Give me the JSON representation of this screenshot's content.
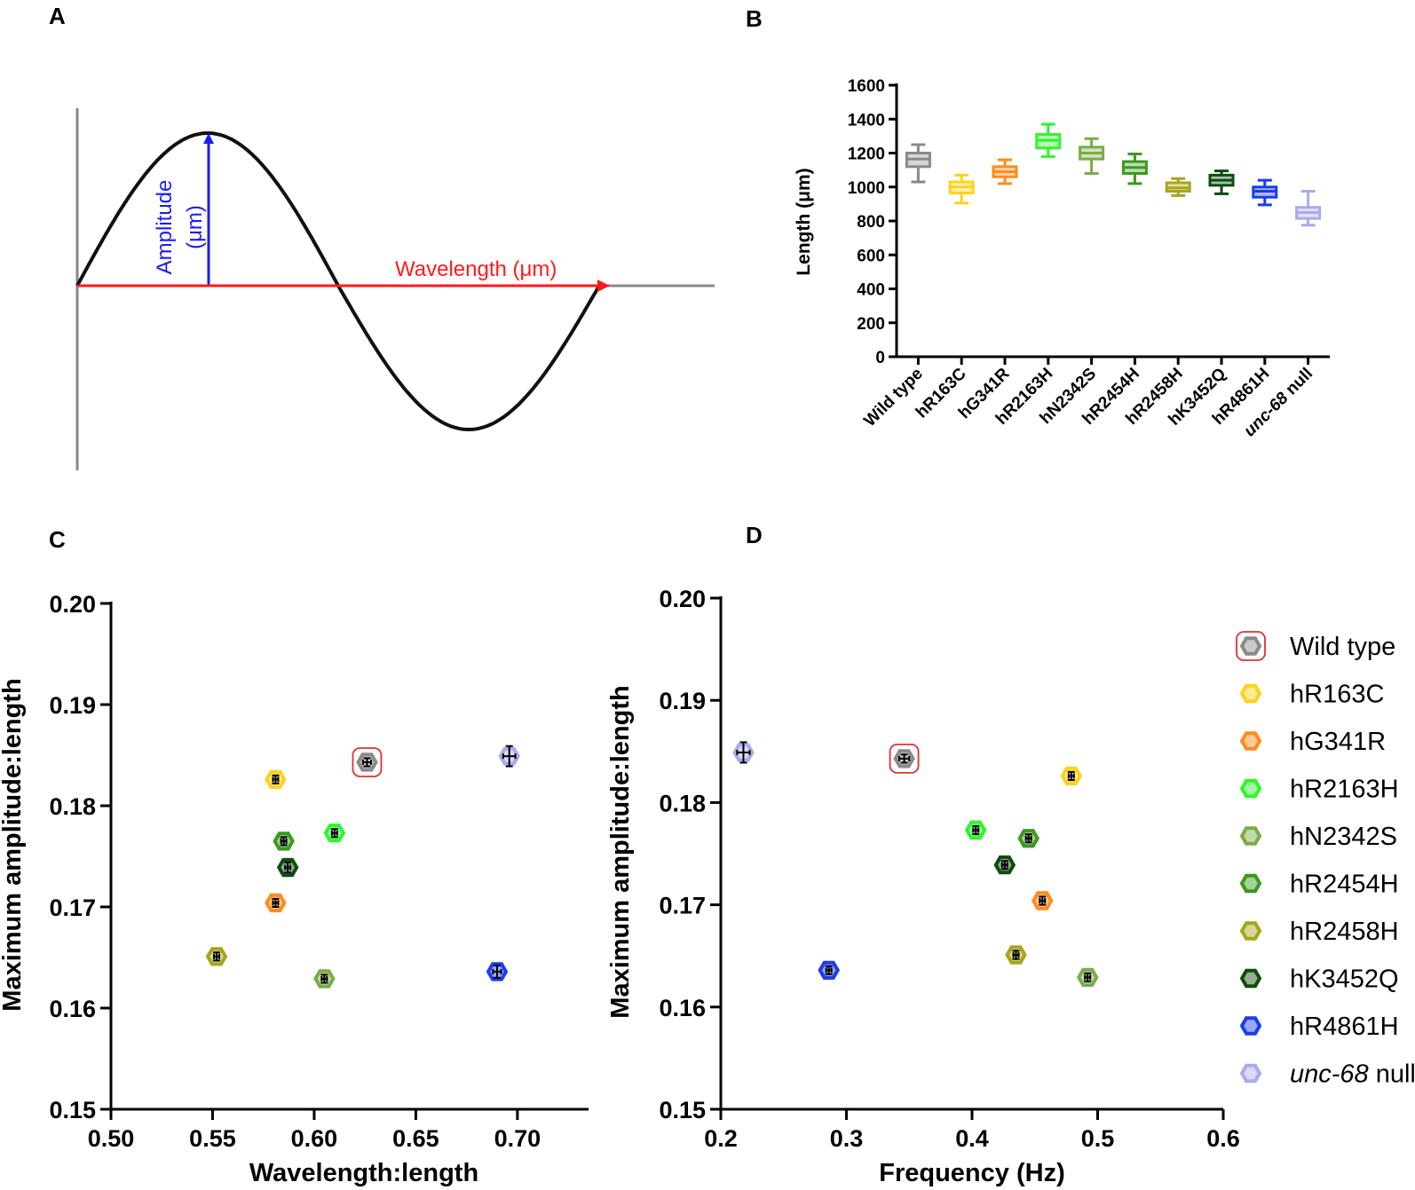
{
  "panels": {
    "a": "A",
    "b": "B",
    "c": "C",
    "d": "D"
  },
  "panel_a": {
    "amplitude_label_line1": "Amplitude",
    "amplitude_label_line2": "(μm)",
    "wavelength_label": "Wavelength (μm)",
    "colors": {
      "curve": "#111111",
      "axis": "#888888",
      "amplitude": "#1a1aff",
      "wavelength": "#ff1a1a"
    }
  },
  "legend": {
    "items": [
      {
        "label": "Wild type",
        "color": "#8a8a8a",
        "highlight": true
      },
      {
        "label": "hR163C",
        "color": "#ffd21a"
      },
      {
        "label": "hG341R",
        "color": "#ff8c1a"
      },
      {
        "label": "hR2163H",
        "color": "#2ef52e"
      },
      {
        "label": "hN2342S",
        "color": "#7aad45"
      },
      {
        "label": "hR2454H",
        "color": "#3a9a1c"
      },
      {
        "label": "hR2458H",
        "color": "#a8a51c"
      },
      {
        "label": "hK3452Q",
        "color": "#0d4d0d"
      },
      {
        "label": "hR4861H",
        "color": "#1a3cf0"
      },
      {
        "label_italic": "unc-68",
        "label_rest": " null",
        "color": "#aaaaf0"
      }
    ]
  },
  "chart_data": [
    {
      "id": "B",
      "type": "box",
      "title": "",
      "ylabel": "Length (μm)",
      "xlabel": "",
      "ylim": [
        0,
        1600
      ],
      "yticks": [
        "0",
        "200",
        "400",
        "600",
        "800",
        "1000",
        "1200",
        "1400",
        "1600"
      ],
      "yticks_values": [
        0,
        200,
        400,
        600,
        800,
        1000,
        1200,
        1400,
        1600
      ],
      "categories": [
        "Wild type",
        "hR163C",
        "hG341R",
        "hR2163H",
        "hN2342S",
        "hR2454H",
        "hR2458H",
        "hK3452Q",
        "hR4861H",
        "unc-68 null"
      ],
      "italic_part": "unc-68",
      "colors": [
        "#8a8a8a",
        "#ffd21a",
        "#ff8c1a",
        "#2ef52e",
        "#7aad45",
        "#3a9a1c",
        "#a8a51c",
        "#0d4d0d",
        "#1a3cf0",
        "#aaaaf0"
      ],
      "boxes": [
        {
          "min": 1030,
          "q1": 1120,
          "median": 1165,
          "q3": 1200,
          "max": 1250
        },
        {
          "min": 905,
          "q1": 965,
          "median": 1000,
          "q3": 1030,
          "max": 1070
        },
        {
          "min": 1020,
          "q1": 1060,
          "median": 1090,
          "q3": 1120,
          "max": 1160
        },
        {
          "min": 1180,
          "q1": 1230,
          "median": 1275,
          "q3": 1310,
          "max": 1370
        },
        {
          "min": 1080,
          "q1": 1165,
          "median": 1200,
          "q3": 1235,
          "max": 1285
        },
        {
          "min": 1020,
          "q1": 1080,
          "median": 1115,
          "q3": 1150,
          "max": 1195
        },
        {
          "min": 950,
          "q1": 975,
          "median": 995,
          "q3": 1025,
          "max": 1050
        },
        {
          "min": 960,
          "q1": 1010,
          "median": 1040,
          "q3": 1070,
          "max": 1095
        },
        {
          "min": 895,
          "q1": 940,
          "median": 975,
          "q3": 1000,
          "max": 1040
        },
        {
          "min": 775,
          "q1": 815,
          "median": 850,
          "q3": 880,
          "max": 975
        }
      ]
    },
    {
      "id": "C",
      "type": "scatter",
      "xlabel": "Wavelength:length",
      "ylabel": "Maximum amplitude:length",
      "xlim": [
        0.5,
        0.735
      ],
      "ylim": [
        0.15,
        0.2
      ],
      "xticks": [
        "0.50",
        "0.55",
        "0.60",
        "0.65",
        "0.70"
      ],
      "xticks_values": [
        0.5,
        0.55,
        0.6,
        0.65,
        0.7
      ],
      "yticks": [
        "0.15",
        "0.16",
        "0.17",
        "0.18",
        "0.19",
        "0.20"
      ],
      "yticks_values": [
        0.15,
        0.16,
        0.17,
        0.18,
        0.19,
        0.2
      ],
      "points": [
        {
          "name": "Wild type",
          "x": 0.626,
          "y": 0.1843,
          "xerr": 0.002,
          "yerr": 0.0004,
          "color": "#8a8a8a",
          "highlight": true
        },
        {
          "name": "hR163C",
          "x": 0.581,
          "y": 0.1826,
          "xerr": 0.0005,
          "yerr": 0.0004,
          "color": "#ffd21a"
        },
        {
          "name": "hG341R",
          "x": 0.581,
          "y": 0.1704,
          "xerr": 0.0005,
          "yerr": 0.0004,
          "color": "#ff8c1a"
        },
        {
          "name": "hR2163H",
          "x": 0.61,
          "y": 0.1773,
          "xerr": 0.0005,
          "yerr": 0.0004,
          "color": "#2ef52e"
        },
        {
          "name": "hN2342S",
          "x": 0.605,
          "y": 0.1629,
          "xerr": 0.0005,
          "yerr": 0.0004,
          "color": "#7aad45"
        },
        {
          "name": "hR2454H",
          "x": 0.585,
          "y": 0.1765,
          "xerr": 0.0005,
          "yerr": 0.0004,
          "color": "#3a9a1c"
        },
        {
          "name": "hR2458H",
          "x": 0.552,
          "y": 0.1651,
          "xerr": 0.0005,
          "yerr": 0.0004,
          "color": "#a8a51c"
        },
        {
          "name": "hK3452Q",
          "x": 0.587,
          "y": 0.1739,
          "xerr": 0.0005,
          "yerr": 0.0005,
          "color": "#0d4d0d"
        },
        {
          "name": "hR4861H",
          "x": 0.69,
          "y": 0.1636,
          "xerr": 0.002,
          "yerr": 0.0006,
          "color": "#1a3cf0"
        },
        {
          "name": "unc-68 null",
          "x": 0.696,
          "y": 0.1849,
          "xerr": 0.003,
          "yerr": 0.001,
          "color": "#aaaaf0"
        }
      ]
    },
    {
      "id": "D",
      "type": "scatter",
      "xlabel": "Frequency (Hz)",
      "ylabel": "Maximum amplitude:length",
      "xlim": [
        0.2,
        0.6
      ],
      "ylim": [
        0.15,
        0.2
      ],
      "xticks": [
        "0.2",
        "0.3",
        "0.4",
        "0.5",
        "0.6"
      ],
      "xticks_values": [
        0.2,
        0.3,
        0.4,
        0.5,
        0.6
      ],
      "yticks": [
        "0.15",
        "0.16",
        "0.17",
        "0.18",
        "0.19",
        "0.20"
      ],
      "yticks_values": [
        0.15,
        0.16,
        0.17,
        0.18,
        0.19,
        0.2
      ],
      "points": [
        {
          "name": "Wild type",
          "x": 0.346,
          "y": 0.1843,
          "xerr": 0.004,
          "yerr": 0.0004,
          "color": "#8a8a8a",
          "highlight": true
        },
        {
          "name": "hR163C",
          "x": 0.479,
          "y": 0.1826,
          "xerr": 0.002,
          "yerr": 0.0004,
          "color": "#ffd21a"
        },
        {
          "name": "hG341R",
          "x": 0.456,
          "y": 0.1704,
          "xerr": 0.002,
          "yerr": 0.0004,
          "color": "#ff8c1a"
        },
        {
          "name": "hR2163H",
          "x": 0.403,
          "y": 0.1773,
          "xerr": 0.002,
          "yerr": 0.0004,
          "color": "#2ef52e"
        },
        {
          "name": "hN2342S",
          "x": 0.492,
          "y": 0.1629,
          "xerr": 0.002,
          "yerr": 0.0004,
          "color": "#7aad45"
        },
        {
          "name": "hR2454H",
          "x": 0.445,
          "y": 0.1765,
          "xerr": 0.002,
          "yerr": 0.0004,
          "color": "#3a9a1c"
        },
        {
          "name": "hR2458H",
          "x": 0.435,
          "y": 0.1651,
          "xerr": 0.002,
          "yerr": 0.0004,
          "color": "#a8a51c"
        },
        {
          "name": "hK3452Q",
          "x": 0.426,
          "y": 0.1739,
          "xerr": 0.002,
          "yerr": 0.0004,
          "color": "#0d4d0d"
        },
        {
          "name": "hR4861H",
          "x": 0.286,
          "y": 0.1636,
          "xerr": 0.002,
          "yerr": 0.0004,
          "color": "#1a3cf0"
        },
        {
          "name": "unc-68 null",
          "x": 0.218,
          "y": 0.1849,
          "xerr": 0.005,
          "yerr": 0.001,
          "color": "#aaaaf0"
        }
      ]
    }
  ]
}
